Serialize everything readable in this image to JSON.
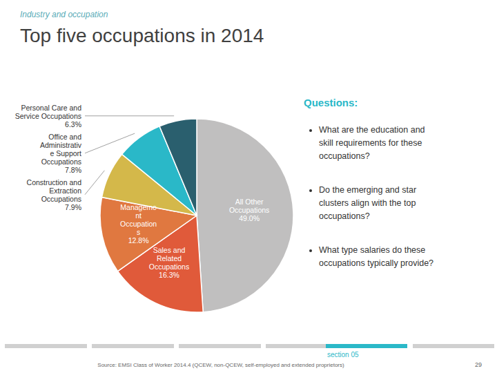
{
  "chart_data": {
    "type": "pie",
    "title": "Top five occupations in 2014",
    "subtitle": "Industry and occupation",
    "categories": [
      "All Other\nOccupations",
      "Sales and\nRelated\nOccupations",
      "Manageme\nnt\nOccupation\ns",
      "Construction and\nExtraction\nOccupations",
      "Office and\nAdministrativ\ne Support\nOccupations",
      "Personal Care and\nService Occupations"
    ],
    "values": [
      49.0,
      16.3,
      12.8,
      7.9,
      7.8,
      6.3
    ],
    "value_labels": [
      "49.0%",
      "16.3%",
      "12.8%",
      "7.9%",
      "7.8%",
      "6.3%"
    ],
    "colors": [
      "#c0bfbf",
      "#e05a3a",
      "#e07840",
      "#d4b84a",
      "#2ab8c8",
      "#2a5f6e"
    ],
    "data_labels": true,
    "annotations": [
      "Questions:",
      "What are the education and\nskill requirements for these\noccupations?",
      "Do the emerging and star\nclusters align with the top\noccupations?",
      "What type salaries do these\noccupations typically provide?",
      "section 05",
      "Source: EMSI Class of Worker 2014.4 (QCEW, non-QCEW, self-employed and extended proprietors)",
      "29"
    ]
  }
}
